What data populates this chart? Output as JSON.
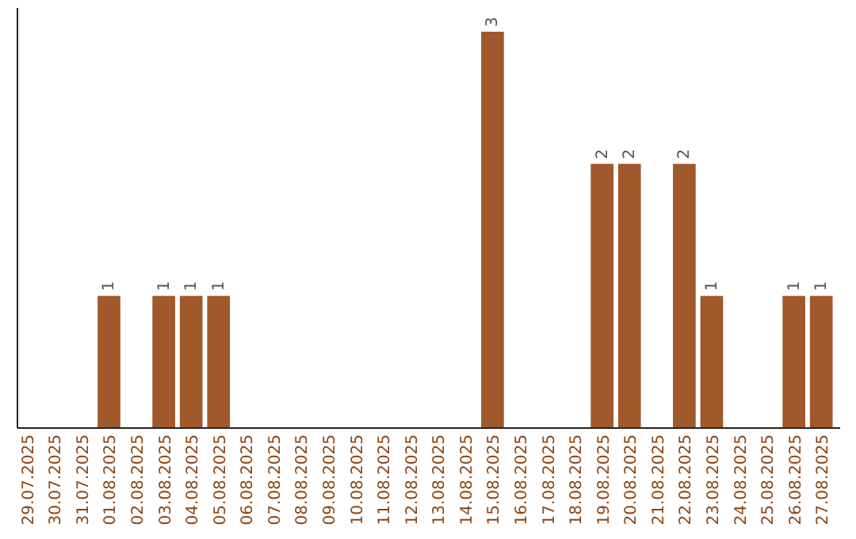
{
  "chart_data": {
    "type": "bar",
    "categories": [
      "29.07.2025",
      "30.07.2025",
      "31.07.2025",
      "01.08.2025",
      "02.08.2025",
      "03.08.2025",
      "04.08.2025",
      "05.08.2025",
      "06.08.2025",
      "07.08.2025",
      "08.08.2025",
      "09.08.2025",
      "10.08.2025",
      "11.08.2025",
      "12.08.2025",
      "13.08.2025",
      "14.08.2025",
      "15.08.2025",
      "16.08.2025",
      "17.08.2025",
      "18.08.2025",
      "19.08.2025",
      "20.08.2025",
      "21.08.2025",
      "22.08.2025",
      "23.08.2025",
      "24.08.2025",
      "25.08.2025",
      "26.08.2025",
      "27.08.2025"
    ],
    "values": [
      0,
      0,
      0,
      1,
      0,
      1,
      1,
      1,
      0,
      0,
      0,
      0,
      0,
      0,
      0,
      0,
      0,
      3,
      0,
      0,
      0,
      2,
      2,
      0,
      2,
      1,
      0,
      0,
      1,
      1
    ],
    "value_labels": [
      null,
      null,
      null,
      "1",
      null,
      "1",
      "1",
      "1",
      null,
      null,
      null,
      null,
      null,
      null,
      null,
      null,
      null,
      "3",
      null,
      null,
      null,
      "2",
      "2",
      null,
      "2",
      "1",
      null,
      null,
      "1",
      "1"
    ],
    "color": "#a0592b",
    "ylim": [
      0,
      3
    ],
    "tick_labels": "x"
  }
}
